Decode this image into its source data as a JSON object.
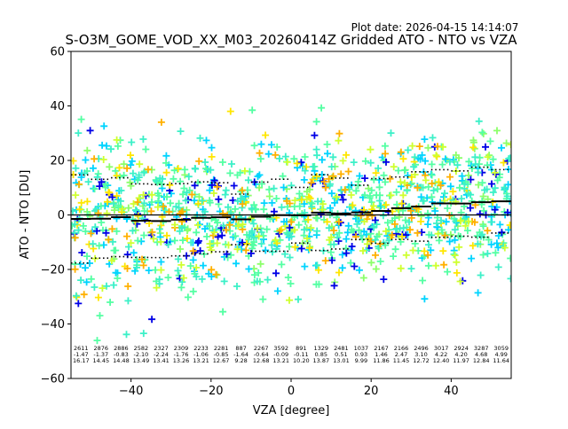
{
  "chart_data": {
    "type": "scatter",
    "plot_date": "Plot date: 2026-04-15 14:14:07",
    "title": "S-O3M_GOME_VOD_XX_M03_20260414Z Gridded ATO - NTO vs VZA",
    "xlabel": "VZA [degree]",
    "ylabel": "ATO - NTO [DU]",
    "xlim": [
      -55,
      55
    ],
    "ylim": [
      -60,
      60
    ],
    "xticks": [
      -40,
      -20,
      0,
      20,
      40
    ],
    "yticks": [
      -60,
      -40,
      -20,
      0,
      20,
      40,
      60
    ],
    "xtick_labels": [
      "−40",
      "−20",
      "0",
      "20",
      "40"
    ],
    "ytick_labels": [
      "−60",
      "−40",
      "−20",
      "0",
      "20",
      "40",
      "60"
    ],
    "bins": [
      -52.5,
      -47.5,
      -42.5,
      -37.5,
      -32.5,
      -27.5,
      -22.5,
      -17.5,
      -12.5,
      -7.5,
      -2.5,
      2.5,
      7.5,
      12.5,
      17.5,
      22.5,
      27.5,
      32.5,
      37.5,
      42.5,
      47.5,
      52.5
    ],
    "counts": [
      "2611",
      "2876",
      "2886",
      "2582",
      "2327",
      "2309",
      "2233",
      "2281",
      "887",
      "2267",
      "3592",
      "891",
      "1329",
      "2481",
      "1037",
      "2167",
      "2166",
      "2496",
      "3017",
      "2924",
      "3287",
      "3059"
    ],
    "means": [
      -1.47,
      -1.37,
      -0.83,
      -2.1,
      -2.24,
      -1.76,
      -1.06,
      -0.85,
      -1.64,
      -0.64,
      -0.09,
      -0.11,
      0.85,
      0.51,
      0.93,
      1.46,
      2.47,
      3.1,
      4.22,
      4.2,
      4.68,
      4.99
    ],
    "mean_labels": [
      "-1.47",
      "-1.37",
      "-0.83",
      "-2.10",
      "-2.24",
      "-1.76",
      "-1.06",
      "-0.85",
      "-1.64",
      "-0.64",
      "-0.09",
      "-0.11",
      "0.85",
      "0.51",
      "0.93",
      "1.46",
      "2.47",
      "3.10",
      "4.22",
      "4.20",
      "4.68",
      "4.99"
    ],
    "stddevs": [
      16.17,
      14.45,
      14.48,
      13.49,
      13.41,
      13.26,
      13.21,
      12.67,
      9.28,
      12.68,
      13.21,
      10.2,
      13.87,
      13.01,
      9.99,
      11.86,
      11.45,
      12.72,
      12.4,
      11.97,
      12.84,
      11.64
    ],
    "stddev_labels": [
      "16.17",
      "14.45",
      "14.48",
      "13.49",
      "13.41",
      "13.26",
      "13.21",
      "12.67",
      "9.28",
      "12.68",
      "13.21",
      "10.20",
      "13.87",
      "13.01",
      "9.99",
      "11.86",
      "11.45",
      "12.72",
      "12.40",
      "11.97",
      "12.84",
      "11.64"
    ],
    "colors": {
      "axis": "#000000",
      "background": "#ffffff",
      "marker_palette": [
        "#54ffa3",
        "#54ffa3",
        "#54ffa3",
        "#3cf0c8",
        "#3cf0c8",
        "#00d4ff",
        "#00d4ff",
        "#8cff6a",
        "#cfff30",
        "#ffe600",
        "#ffb000",
        "#0000e6"
      ]
    }
  }
}
